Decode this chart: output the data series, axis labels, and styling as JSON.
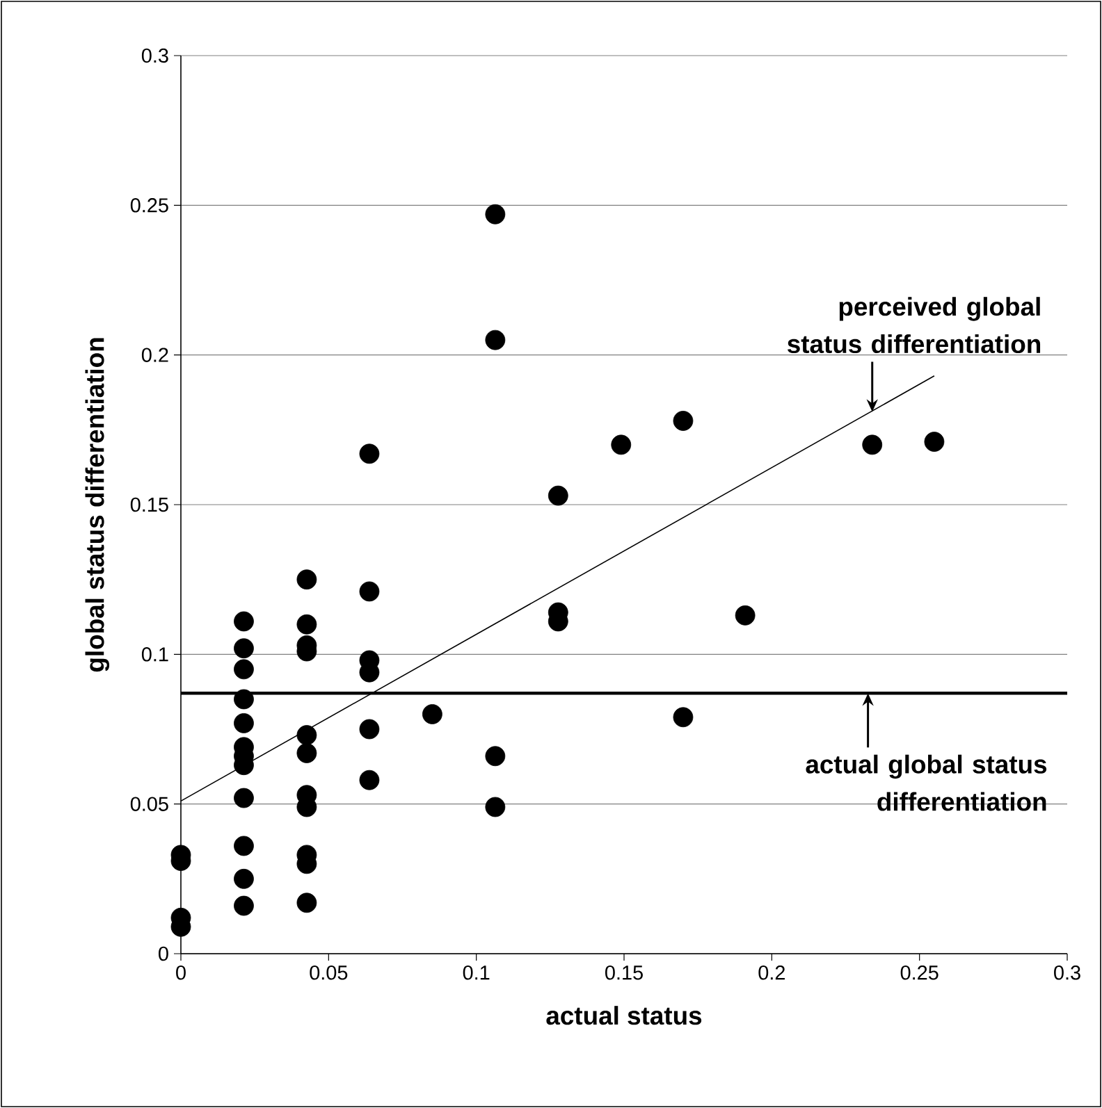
{
  "chart_data": {
    "type": "scatter",
    "xlabel": "actual status",
    "ylabel": "global status differentiation",
    "xlim": [
      0,
      0.3
    ],
    "ylim": [
      0,
      0.3
    ],
    "xticks": [
      0,
      0.05,
      0.1,
      0.15,
      0.2,
      0.25,
      0.3
    ],
    "yticks": [
      0,
      0.05,
      0.1,
      0.15,
      0.2,
      0.25,
      0.3
    ],
    "grid": "y",
    "series": [
      {
        "color": "#000000",
        "marker": "circle",
        "x": [
          0,
          0,
          0,
          0,
          0.0213,
          0.0213,
          0.0213,
          0.0213,
          0.0213,
          0.0213,
          0.0213,
          0.0213,
          0.0213,
          0.0213,
          0.0213,
          0.0213,
          0.0426,
          0.0426,
          0.0426,
          0.0426,
          0.0426,
          0.0426,
          0.0426,
          0.0426,
          0.0426,
          0.0426,
          0.0426,
          0.0638,
          0.0638,
          0.0638,
          0.0638,
          0.0638,
          0.0638,
          0.0851,
          0.1064,
          0.1064,
          0.1064,
          0.1064,
          0.1277,
          0.1277,
          0.1277,
          0.149,
          0.17,
          0.17,
          0.191,
          0.234,
          0.255
        ],
        "values": [
          0.033,
          0.031,
          0.012,
          0.009,
          0.111,
          0.102,
          0.095,
          0.085,
          0.077,
          0.069,
          0.066,
          0.063,
          0.052,
          0.036,
          0.025,
          0.016,
          0.125,
          0.11,
          0.103,
          0.101,
          0.073,
          0.067,
          0.053,
          0.049,
          0.033,
          0.03,
          0.017,
          0.167,
          0.121,
          0.098,
          0.094,
          0.075,
          0.058,
          0.08,
          0.247,
          0.205,
          0.066,
          0.049,
          0.153,
          0.114,
          0.111,
          0.17,
          0.178,
          0.079,
          0.113,
          0.17,
          0.171
        ]
      },
      {
        "type": "line",
        "color": "#000000",
        "marker": "none",
        "x": [
          0,
          0.255
        ],
        "values": [
          0.051,
          0.193
        ]
      }
    ],
    "ref_lines": [
      {
        "axis": "y",
        "value": 0.087,
        "label": "actual global status differentiation",
        "color": "#000000"
      }
    ],
    "annotations": [
      {
        "text": "perceived global status differentiation",
        "x": 0.234,
        "y": 0.181
      }
    ]
  }
}
